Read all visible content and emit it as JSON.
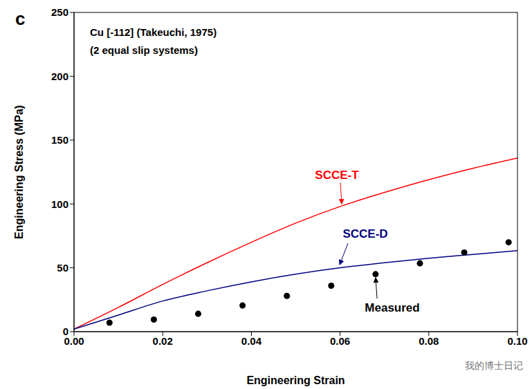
{
  "chart_data": {
    "type": "line",
    "panel_label": "c",
    "title": "Cu [-112] (Takeuchi, 1975)",
    "subtitle": "(2 equal slip systems)",
    "x_label": "Engineering Strain",
    "y_label": "Engineering Stress (MPa)",
    "watermark": "我的博士日记",
    "xlim": [
      0,
      0.1
    ],
    "xticks": [
      {
        "value": 0,
        "label": "0.00"
      },
      {
        "value": 0.02,
        "label": "0.02"
      },
      {
        "value": 0.04,
        "label": "0.04"
      },
      {
        "value": 0.06,
        "label": "0.06"
      },
      {
        "value": 0.08,
        "label": "0.08"
      },
      {
        "value": 0.1,
        "label": "0.10"
      }
    ],
    "ylim": [
      0,
      250
    ],
    "yticks": [
      0,
      50,
      100,
      150,
      200,
      250
    ],
    "grid": false,
    "series": [
      {
        "name": "SCCE-T",
        "type": "line",
        "color": "#ff0000",
        "x": [
          0,
          0.01,
          0.02,
          0.03,
          0.04,
          0.05,
          0.06,
          0.07,
          0.08,
          0.09,
          0.1
        ],
        "values": [
          2,
          19,
          37,
          54,
          70,
          85,
          98,
          109,
          119,
          128,
          136
        ]
      },
      {
        "name": "SCCE-D",
        "type": "line",
        "color": "#000080",
        "x": [
          0,
          0.01,
          0.02,
          0.03,
          0.04,
          0.05,
          0.06,
          0.07,
          0.08,
          0.09,
          0.1
        ],
        "values": [
          2,
          13,
          24,
          32,
          39,
          45,
          50,
          54,
          57.5,
          60.5,
          63.5
        ]
      },
      {
        "name": "Measured",
        "type": "scatter",
        "marker": "circle",
        "color": "#000000",
        "x": [
          0.008,
          0.018,
          0.028,
          0.038,
          0.048,
          0.058,
          0.068,
          0.078,
          0.088,
          0.098
        ],
        "values": [
          7,
          9.5,
          14,
          20.5,
          28,
          36,
          45,
          53.5,
          62,
          70
        ]
      }
    ]
  }
}
